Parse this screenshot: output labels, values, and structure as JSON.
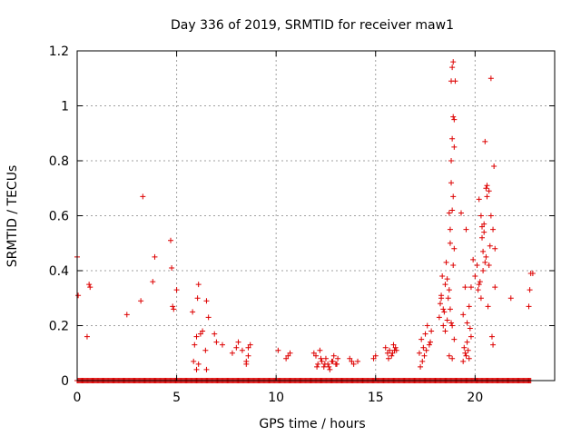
{
  "chart_data": {
    "type": "scatter",
    "title": "Day 336 of 2019, SRMTID for receiver maw1",
    "xlabel": "GPS time / hours",
    "ylabel": "SRMTID / TECUs",
    "xlim": [
      0,
      24
    ],
    "ylim": [
      0,
      1.2
    ],
    "xticks": [
      0,
      5,
      10,
      15,
      20
    ],
    "xtick_labels": [
      "0",
      "5",
      "10",
      "15",
      "20"
    ],
    "yticks": [
      0,
      0.2,
      0.4,
      0.6,
      0.8,
      1,
      1.2
    ],
    "ytick_labels": [
      "0",
      "0.2",
      "0.4",
      "0.6",
      "0.8",
      "1",
      "1.2"
    ],
    "grid": true,
    "marker": "+",
    "color": "#dd0000",
    "baseline_ranges_hours": [
      [
        0.0,
        22.8
      ]
    ],
    "series": [
      {
        "name": "SRMTID",
        "x": [
          0.0,
          0.05,
          0.5,
          0.6,
          0.65,
          2.5,
          3.2,
          3.3,
          3.8,
          3.9,
          4.7,
          4.75,
          4.8,
          4.85,
          5.0,
          5.8,
          5.9,
          6.0,
          6.05,
          6.1,
          6.2,
          6.3,
          6.45,
          6.5,
          6.6,
          5.85,
          6.0,
          6.1,
          6.5,
          6.9,
          7.0,
          7.3,
          7.8,
          8.0,
          8.1,
          8.3,
          8.5,
          8.6,
          8.7,
          8.5,
          8.6,
          10.1,
          10.5,
          10.6,
          10.7,
          11.9,
          12.0,
          12.1,
          12.2,
          12.3,
          12.4,
          12.5,
          12.6,
          12.7,
          12.8,
          12.9,
          13.0,
          13.1,
          12.05,
          12.25,
          12.45,
          12.65,
          12.85,
          13.05,
          13.7,
          13.8,
          13.9,
          14.1,
          14.9,
          15.0,
          15.5,
          15.6,
          15.7,
          15.8,
          15.9,
          16.0,
          16.05,
          15.65,
          15.85,
          15.95,
          17.2,
          17.3,
          17.4,
          17.5,
          17.6,
          17.7,
          17.8,
          17.35,
          17.55,
          17.75,
          17.25,
          17.45,
          18.2,
          18.3,
          18.35,
          18.4,
          18.5,
          18.55,
          18.6,
          18.7,
          18.75,
          18.8,
          18.85,
          18.9,
          18.95,
          18.65,
          18.7,
          18.75,
          18.8,
          18.85,
          18.9,
          18.95,
          19.0,
          18.8,
          18.9,
          18.85,
          18.95,
          18.9,
          18.85,
          18.75,
          18.8,
          18.95,
          18.85,
          18.7,
          18.6,
          18.5,
          18.4,
          18.3,
          18.45,
          18.25,
          19.3,
          19.4,
          19.5,
          19.6,
          19.7,
          19.8,
          19.9,
          19.45,
          19.55,
          19.65,
          19.75,
          19.5,
          19.6,
          19.8,
          19.7,
          19.4,
          19.55,
          20.0,
          20.1,
          20.2,
          20.3,
          20.35,
          20.4,
          20.45,
          20.5,
          20.55,
          20.6,
          20.7,
          20.8,
          20.9,
          21.0,
          20.15,
          20.25,
          20.35,
          20.45,
          20.55,
          20.65,
          20.4,
          20.5,
          20.3,
          20.2,
          20.6,
          20.75,
          20.85,
          20.95,
          21.0,
          20.9,
          20.8,
          20.7,
          21.8,
          22.7,
          22.75,
          22.8,
          22.9
        ],
        "y": [
          0.45,
          0.31,
          0.16,
          0.35,
          0.34,
          0.24,
          0.29,
          0.67,
          0.36,
          0.45,
          0.51,
          0.41,
          0.27,
          0.26,
          0.33,
          0.25,
          0.13,
          0.16,
          0.3,
          0.35,
          0.17,
          0.18,
          0.11,
          0.29,
          0.23,
          0.07,
          0.04,
          0.06,
          0.04,
          0.17,
          0.14,
          0.13,
          0.1,
          0.12,
          0.14,
          0.11,
          0.07,
          0.12,
          0.13,
          0.06,
          0.09,
          0.11,
          0.08,
          0.09,
          0.1,
          0.1,
          0.09,
          0.06,
          0.11,
          0.07,
          0.05,
          0.08,
          0.06,
          0.04,
          0.07,
          0.09,
          0.06,
          0.08,
          0.05,
          0.08,
          0.06,
          0.05,
          0.07,
          0.06,
          0.08,
          0.07,
          0.06,
          0.07,
          0.08,
          0.09,
          0.12,
          0.1,
          0.11,
          0.09,
          0.13,
          0.12,
          0.11,
          0.08,
          0.1,
          0.11,
          0.1,
          0.15,
          0.12,
          0.17,
          0.2,
          0.13,
          0.18,
          0.07,
          0.11,
          0.14,
          0.05,
          0.09,
          0.23,
          0.3,
          0.38,
          0.26,
          0.35,
          0.43,
          0.37,
          0.61,
          0.5,
          0.72,
          0.88,
          0.96,
          0.85,
          0.3,
          0.33,
          0.55,
          1.09,
          1.14,
          1.16,
          0.95,
          1.09,
          0.8,
          0.67,
          0.62,
          0.48,
          0.42,
          0.2,
          0.26,
          0.21,
          0.15,
          0.08,
          0.09,
          0.22,
          0.18,
          0.2,
          0.31,
          0.25,
          0.28,
          0.61,
          0.24,
          0.34,
          0.21,
          0.27,
          0.34,
          0.44,
          0.12,
          0.09,
          0.11,
          0.19,
          0.1,
          0.14,
          0.16,
          0.08,
          0.07,
          0.55,
          0.38,
          0.42,
          0.66,
          0.3,
          0.56,
          0.47,
          0.57,
          0.87,
          0.7,
          0.67,
          0.42,
          0.6,
          0.55,
          0.48,
          0.33,
          0.36,
          0.52,
          0.54,
          0.45,
          0.27,
          0.4,
          0.43,
          0.6,
          0.35,
          0.71,
          0.49,
          0.16,
          0.78,
          0.34,
          0.13,
          1.1,
          0.69,
          0.3,
          0.27,
          0.33,
          0.39,
          0.39
        ]
      }
    ]
  }
}
